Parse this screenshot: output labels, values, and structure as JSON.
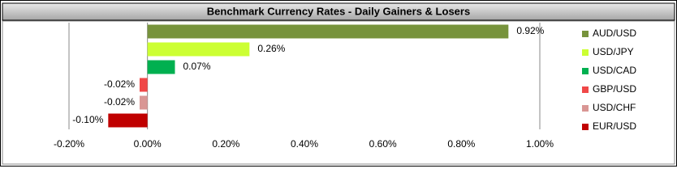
{
  "chart_data": {
    "type": "bar",
    "orientation": "horizontal",
    "title": "Benchmark Currency Rates - Daily Gainers & Losers",
    "series": [
      {
        "name": "AUD/USD",
        "color": "#77933c",
        "values": [
          0.92
        ],
        "value_labels": [
          "0.92%"
        ]
      },
      {
        "name": "USD/JPY",
        "color": "#ccff33",
        "values": [
          0.26
        ],
        "value_labels": [
          "0.26%"
        ]
      },
      {
        "name": "USD/CAD",
        "color": "#00b050",
        "values": [
          0.07
        ],
        "value_labels": [
          "0.07%"
        ]
      },
      {
        "name": "GBP/USD",
        "color": "#f04848",
        "values": [
          -0.02
        ],
        "value_labels": [
          "-0.02%"
        ]
      },
      {
        "name": "USD/CHF",
        "color": "#d99694",
        "values": [
          -0.02
        ],
        "value_labels": [
          "-0.02%"
        ]
      },
      {
        "name": "EUR/USD",
        "color": "#c00000",
        "values": [
          -0.1
        ],
        "value_labels": [
          "-0.10%"
        ]
      }
    ],
    "xlim": [
      -0.2,
      1.0
    ],
    "xticks": [
      {
        "value": -0.2,
        "label": "-0.20%"
      },
      {
        "value": 0,
        "label": "0.00%"
      },
      {
        "value": 0.2,
        "label": "0.20%"
      },
      {
        "value": 0.4,
        "label": "0.40%"
      },
      {
        "value": 0.6,
        "label": "0.60%"
      },
      {
        "value": 0.8,
        "label": "0.80%"
      },
      {
        "value": 1.0,
        "label": "1.00%"
      }
    ],
    "grid": false,
    "legend": "right"
  }
}
